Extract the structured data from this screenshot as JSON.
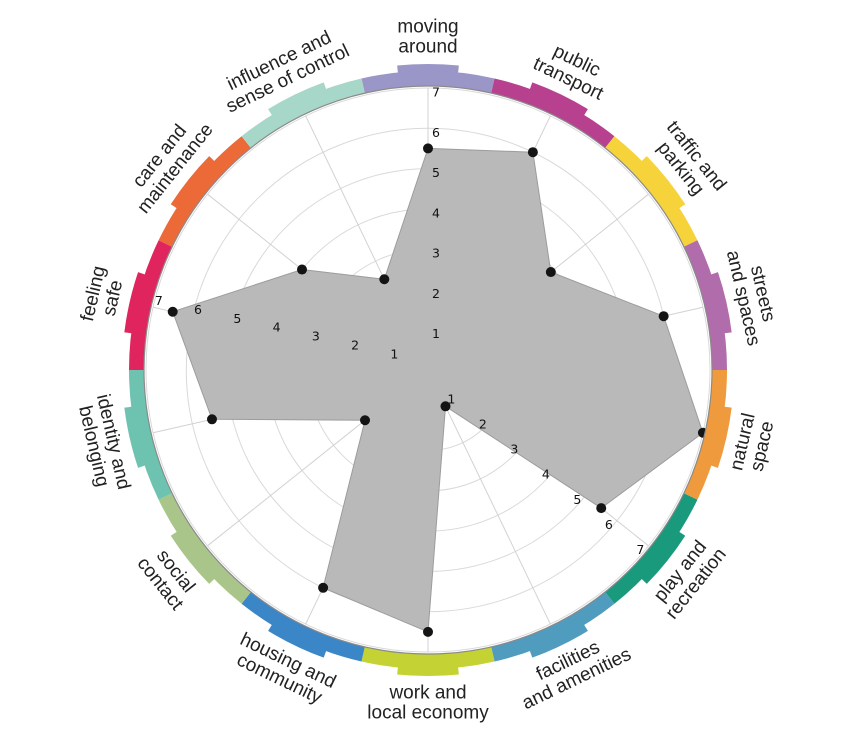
{
  "chart_data": {
    "type": "radar",
    "scale": [
      1,
      7
    ],
    "ticks": [
      "1",
      "2",
      "3",
      "4",
      "5",
      "6",
      "7"
    ],
    "grid": true,
    "categories": [
      {
        "label": [
          "moving",
          "around"
        ],
        "value": 5.5,
        "color": "#9b96c8"
      },
      {
        "label": [
          "public",
          "transport"
        ],
        "value": 6.0,
        "color": "#b8418f"
      },
      {
        "label": [
          "traffic and",
          "parking"
        ],
        "value": 3.9,
        "color": "#f6d33a"
      },
      {
        "label": [
          "streets",
          "and spaces"
        ],
        "value": 6.0,
        "color": "#b06cab"
      },
      {
        "label": [
          "natural",
          "space"
        ],
        "value": 7.0,
        "color": "#ef9a3c"
      },
      {
        "label": [
          "play and",
          "recreation"
        ],
        "value": 5.5,
        "color": "#1a9a7c"
      },
      {
        "label": [
          "facilities",
          "and amenities"
        ],
        "value": 1.0,
        "color": "#4f9cbf"
      },
      {
        "label": [
          "work and",
          "local economy"
        ],
        "value": 6.5,
        "color": "#c5d233"
      },
      {
        "label": [
          "housing and",
          "community"
        ],
        "value": 6.0,
        "color": "#3b86c7"
      },
      {
        "label": [
          "social",
          "contact"
        ],
        "value": 2.0,
        "color": "#a9c58a"
      },
      {
        "label": [
          "identity and",
          "belonging"
        ],
        "value": 5.5,
        "color": "#6ec3b0"
      },
      {
        "label": [
          "feeling",
          "safe"
        ],
        "value": 6.5,
        "color": "#e0245e"
      },
      {
        "label": [
          "care and",
          "maintenance"
        ],
        "value": 4.0,
        "color": "#ec6a37"
      },
      {
        "label": [
          "influence and",
          "sense of control"
        ],
        "value": 2.5,
        "color": "#a6d7c8"
      }
    ],
    "tick_label_axes": [
      "moving around",
      "feeling safe",
      "play and recreation"
    ],
    "fill_color": "#b9b9b9",
    "point_color": "#141414"
  }
}
